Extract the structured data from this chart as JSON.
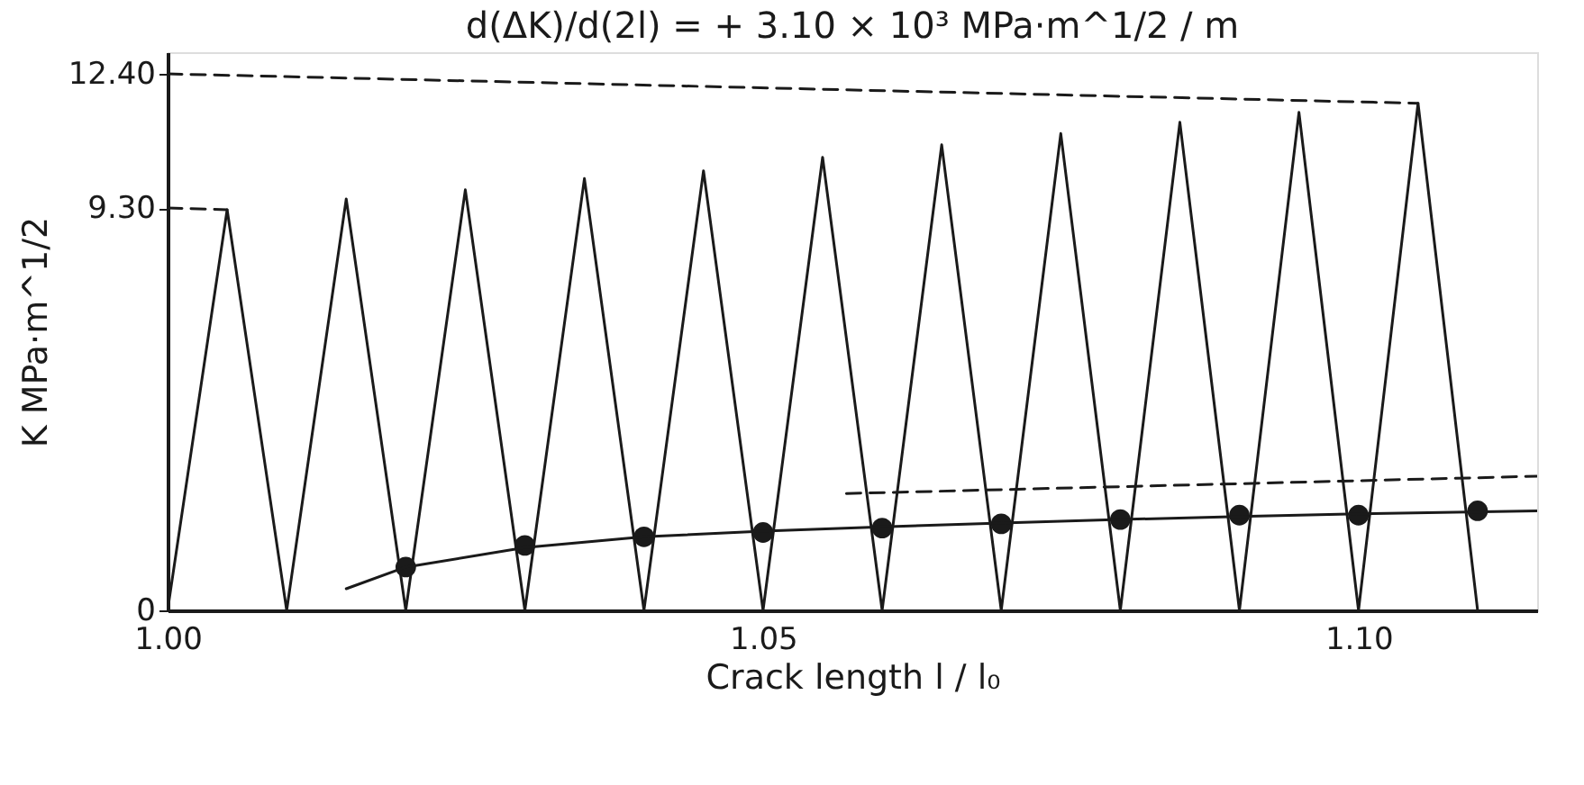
{
  "chart_data": {
    "type": "line",
    "title": "d(ΔK)/d(2l) = + 3.10 × 10³  MPa·m^1/2 / m",
    "xlabel": "Crack   length  l / l₀",
    "ylabel": "K    MPa·m^1/2",
    "xlim": [
      1.0,
      1.115
    ],
    "xticks": [
      {
        "value": 1.0,
        "label": "1.00"
      },
      1.05,
      {
        "value": 1.1,
        "label": "1.10"
      }
    ],
    "ylim": [
      0,
      12.9
    ],
    "yticks": [
      0,
      {
        "value": 9.3,
        "label": "9.30"
      },
      {
        "value": 12.4,
        "label": "12.40"
      }
    ],
    "series": [
      {
        "color": "#1a1a1a",
        "line_style": "solid",
        "marker": "none",
        "x": [
          1.0,
          1.005,
          1.01,
          1.015,
          1.02,
          1.025,
          1.03,
          1.035,
          1.04,
          1.045,
          1.05,
          1.055,
          1.06,
          1.065,
          1.07,
          1.075,
          1.08,
          1.085,
          1.09,
          1.095,
          1.1,
          1.105,
          1.11
        ],
        "values": [
          0,
          9.26,
          0,
          9.51,
          0,
          9.72,
          0,
          9.98,
          0,
          10.16,
          0,
          10.47,
          0,
          10.76,
          0,
          11.02,
          0,
          11.28,
          0,
          11.51,
          0,
          11.72,
          0
        ]
      },
      {
        "type": "scatter",
        "color": "#1a1a1a",
        "marker": "circle",
        "x": [
          1.02,
          1.03,
          1.04,
          1.05,
          1.06,
          1.07,
          1.08,
          1.09,
          1.1,
          1.11
        ],
        "values": [
          1.0,
          1.5,
          1.7,
          1.8,
          1.9,
          2.0,
          2.1,
          2.2,
          2.2,
          2.3
        ]
      },
      {
        "color": "#1a1a1a",
        "line_style": "solid",
        "marker": "none",
        "x": [
          1.015,
          1.02,
          1.03,
          1.04,
          1.05,
          1.06,
          1.07,
          1.08,
          1.09,
          1.1,
          1.115
        ],
        "values": [
          0.5,
          1.0,
          1.45,
          1.7,
          1.83,
          1.93,
          2.02,
          2.1,
          2.17,
          2.23,
          2.3
        ]
      },
      {
        "color": "#1a1a1a",
        "line_style": "dashed",
        "marker": "none",
        "x": [
          1.057,
          1.115
        ],
        "values": [
          2.7,
          3.1
        ]
      },
      {
        "color": "#1a1a1a",
        "line_style": "dashed",
        "marker": "none",
        "x": [
          1.0,
          1.105
        ],
        "values": [
          12.4,
          11.72
        ]
      },
      {
        "color": "#1a1a1a",
        "line_style": "dashed",
        "marker": "none",
        "x": [
          1.0,
          1.005
        ],
        "values": [
          9.3,
          9.26
        ]
      }
    ]
  }
}
